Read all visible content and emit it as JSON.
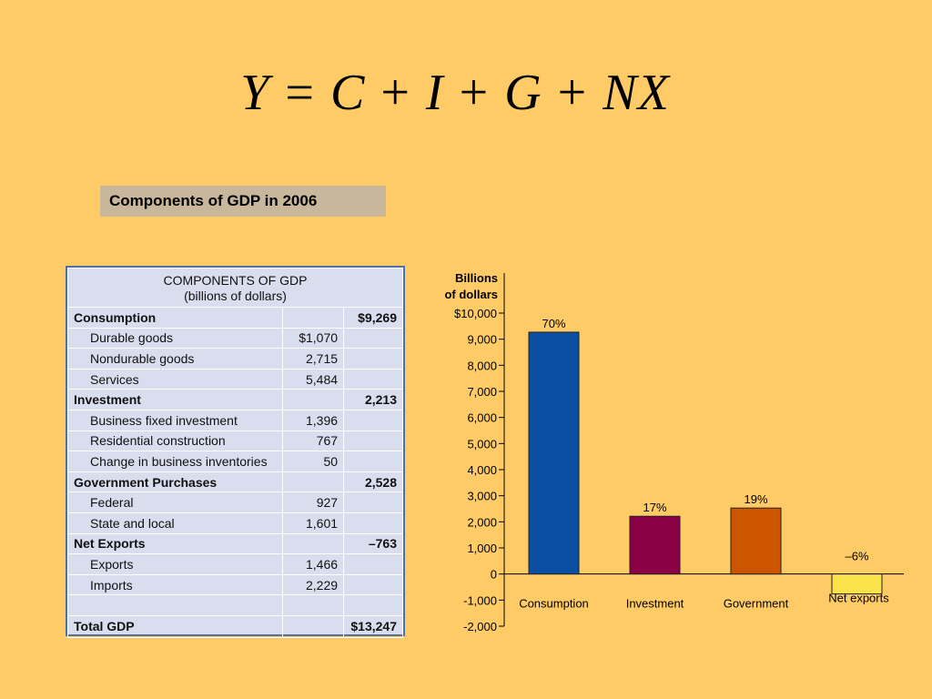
{
  "equation": {
    "terms": [
      "Y",
      "C",
      "I",
      "G",
      "NX"
    ],
    "equals": "=",
    "plus": "+"
  },
  "subtitle": "Components of GDP in 2006",
  "table": {
    "header_line1": "COMPONENTS OF GDP",
    "header_line2": "(billions of dollars)",
    "rows": [
      {
        "label": "Consumption",
        "sub": "",
        "total": "$9,269",
        "bold": true
      },
      {
        "label": "Durable goods",
        "sub": "$1,070",
        "total": "",
        "bold": false
      },
      {
        "label": "Nondurable goods",
        "sub": "2,715",
        "total": "",
        "bold": false
      },
      {
        "label": "Services",
        "sub": "5,484",
        "total": "",
        "bold": false
      },
      {
        "label": "Investment",
        "sub": "",
        "total": "2,213",
        "bold": true
      },
      {
        "label": "Business fixed investment",
        "sub": "1,396",
        "total": "",
        "bold": false
      },
      {
        "label": "Residential construction",
        "sub": "767",
        "total": "",
        "bold": false
      },
      {
        "label": "Change in business inventories",
        "sub": "50",
        "total": "",
        "bold": false
      },
      {
        "label": "Government Purchases",
        "sub": "",
        "total": "2,528",
        "bold": true
      },
      {
        "label": "Federal",
        "sub": "927",
        "total": "",
        "bold": false
      },
      {
        "label": "State and local",
        "sub": "1,601",
        "total": "",
        "bold": false
      },
      {
        "label": "Net Exports",
        "sub": "",
        "total": "–763",
        "bold": true
      },
      {
        "label": "Exports",
        "sub": "1,466",
        "total": "",
        "bold": false
      },
      {
        "label": "Imports",
        "sub": "2,229",
        "total": "",
        "bold": false
      },
      {
        "label": "",
        "sub": "",
        "total": "",
        "bold": false
      },
      {
        "label": "Total GDP",
        "sub": "",
        "total": "$13,247",
        "bold": true
      }
    ]
  },
  "chart_data": {
    "type": "bar",
    "ylabel_line1": "Billions",
    "ylabel_line2": "of dollars",
    "ylim": [
      -2000,
      10000
    ],
    "yticks": [
      -2000,
      -1000,
      0,
      1000,
      2000,
      3000,
      4000,
      5000,
      6000,
      7000,
      8000,
      9000,
      10000
    ],
    "ytick_labels": [
      "-2,000",
      "-1,000",
      "0",
      "1,000",
      "2,000",
      "3,000",
      "4,000",
      "5,000",
      "6,000",
      "7,000",
      "8,000",
      "9,000",
      "$10,000"
    ],
    "categories": [
      "Consumption",
      "Investment",
      "Government",
      "Net exports"
    ],
    "values": [
      9269,
      2213,
      2528,
      -763
    ],
    "pct_labels": [
      "70%",
      "17%",
      "19%",
      "–6%"
    ],
    "colors": [
      "#0A4FA3",
      "#8B0046",
      "#CC5500",
      "#FBE24B"
    ],
    "grid": false
  }
}
